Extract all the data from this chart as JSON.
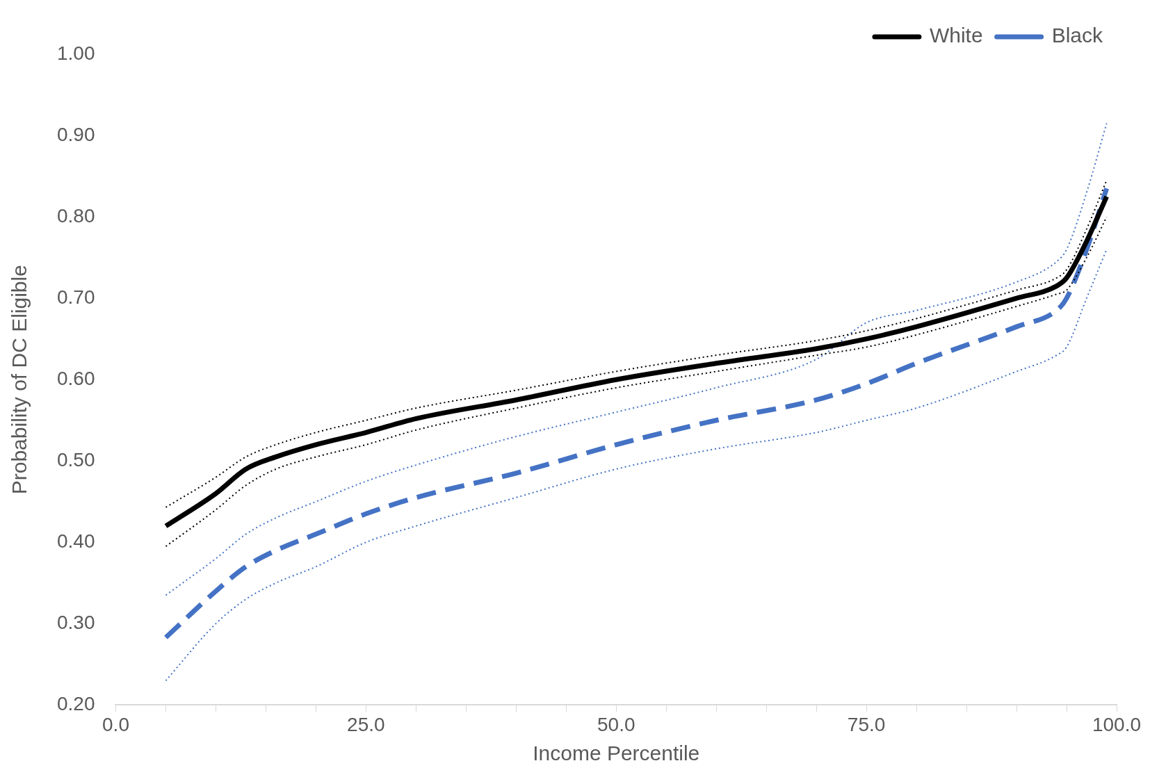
{
  "chart_data": {
    "type": "line",
    "xlabel": "Income Percentile",
    "ylabel": "Probability of DC Eligible",
    "x": [
      5,
      10,
      13,
      16,
      20,
      25,
      30,
      40,
      50,
      60,
      70,
      75,
      80,
      90,
      94,
      95,
      97,
      99
    ],
    "series": [
      {
        "name": "White",
        "color": "#000000",
        "line_style": "solid",
        "values": [
          0.42,
          0.46,
          0.49,
          0.505,
          0.52,
          0.535,
          0.552,
          0.575,
          0.6,
          0.62,
          0.638,
          0.65,
          0.665,
          0.7,
          0.715,
          0.725,
          0.77,
          0.825
        ]
      },
      {
        "color": "#000000",
        "line_style": "dotted",
        "values": [
          0.395,
          0.44,
          0.47,
          0.49,
          0.505,
          0.52,
          0.538,
          0.565,
          0.59,
          0.61,
          0.63,
          0.64,
          0.655,
          0.69,
          0.705,
          0.71,
          0.75,
          0.8
        ]
      },
      {
        "color": "#000000",
        "line_style": "dotted",
        "values": [
          0.443,
          0.48,
          0.505,
          0.52,
          0.535,
          0.55,
          0.565,
          0.587,
          0.61,
          0.63,
          0.648,
          0.66,
          0.675,
          0.71,
          0.725,
          0.735,
          0.785,
          0.845
        ]
      },
      {
        "name": "Black",
        "color": "#4472c4",
        "line_style": "dashed",
        "values": [
          0.283,
          0.34,
          0.37,
          0.39,
          0.41,
          0.435,
          0.455,
          0.485,
          0.52,
          0.55,
          0.575,
          0.595,
          0.62,
          0.665,
          0.685,
          0.7,
          0.76,
          0.835
        ]
      },
      {
        "color": "#4472c4",
        "line_style": "dotted",
        "values": [
          0.23,
          0.3,
          0.33,
          0.35,
          0.37,
          0.4,
          0.42,
          0.455,
          0.49,
          0.515,
          0.535,
          0.55,
          0.565,
          0.61,
          0.63,
          0.64,
          0.7,
          0.76
        ]
      },
      {
        "color": "#4472c4",
        "line_style": "dotted",
        "values": [
          0.335,
          0.38,
          0.41,
          0.43,
          0.45,
          0.475,
          0.495,
          0.53,
          0.56,
          0.59,
          0.625,
          0.67,
          0.685,
          0.72,
          0.745,
          0.76,
          0.83,
          0.915
        ]
      }
    ],
    "xlim": [
      0,
      100
    ],
    "xticks": [
      {
        "value": 0,
        "label": "0.0"
      },
      {
        "value": 5,
        "label": null
      },
      {
        "value": 10,
        "label": null
      },
      {
        "value": 15,
        "label": null
      },
      {
        "value": 20,
        "label": null
      },
      {
        "value": 25,
        "label": "25.0"
      },
      {
        "value": 30,
        "label": null
      },
      {
        "value": 35,
        "label": null
      },
      {
        "value": 40,
        "label": null
      },
      {
        "value": 45,
        "label": null
      },
      {
        "value": 50,
        "label": "50.0"
      },
      {
        "value": 55,
        "label": null
      },
      {
        "value": 60,
        "label": null
      },
      {
        "value": 65,
        "label": null
      },
      {
        "value": 70,
        "label": null
      },
      {
        "value": 75,
        "label": "75.0"
      },
      {
        "value": 80,
        "label": null
      },
      {
        "value": 85,
        "label": null
      },
      {
        "value": 90,
        "label": null
      },
      {
        "value": 95,
        "label": null
      },
      {
        "value": 100,
        "label": "100.0"
      }
    ],
    "ylim": [
      0.2,
      1.0
    ],
    "yticks": [
      {
        "value": 0.2,
        "label": "0.20"
      },
      {
        "value": 0.3,
        "label": "0.30"
      },
      {
        "value": 0.4,
        "label": "0.40"
      },
      {
        "value": 0.5,
        "label": "0.50"
      },
      {
        "value": 0.6,
        "label": "0.60"
      },
      {
        "value": 0.7,
        "label": "0.70"
      },
      {
        "value": 0.8,
        "label": "0.80"
      },
      {
        "value": 0.9,
        "label": "0.90"
      },
      {
        "value": 1.0,
        "label": "1.00"
      }
    ],
    "grid": false,
    "legend": "top right",
    "marker": "none"
  }
}
